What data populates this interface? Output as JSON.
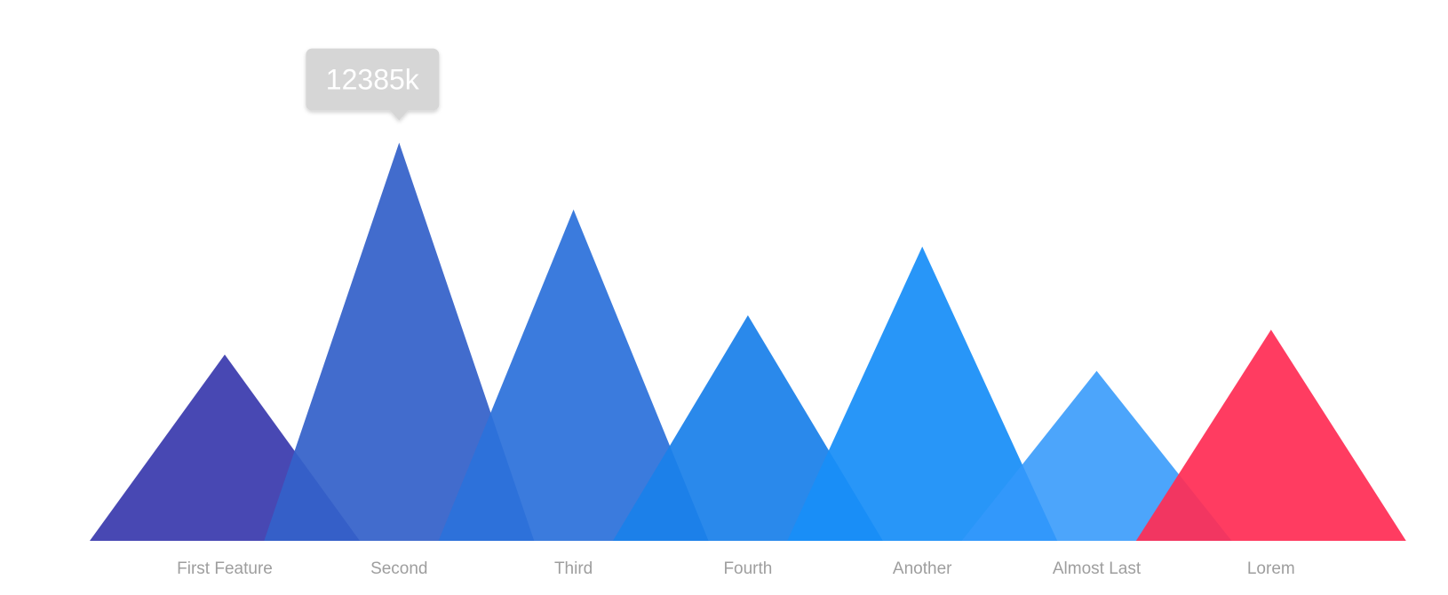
{
  "chart_data": {
    "type": "area",
    "categories": [
      "First Feature",
      "Second",
      "Third",
      "Fourth",
      "Another",
      "Almost Last",
      "Lorem"
    ],
    "values": [
      4120,
      8810,
      7330,
      4990,
      6510,
      3760,
      4670
    ],
    "colors": [
      "#3a3aad",
      "#3461c9",
      "#2c71da",
      "#1a80e9",
      "#188ef8",
      "#3399fb",
      "#ff2d55"
    ],
    "opacities": [
      0.93,
      0.93,
      0.93,
      0.93,
      0.93,
      0.88,
      0.93
    ],
    "ylim": [
      0,
      10000
    ],
    "title": "",
    "xlabel": "",
    "ylabel": "",
    "grid": false,
    "legend": "none",
    "tooltip": {
      "category": "Second",
      "text": "12385k"
    }
  }
}
